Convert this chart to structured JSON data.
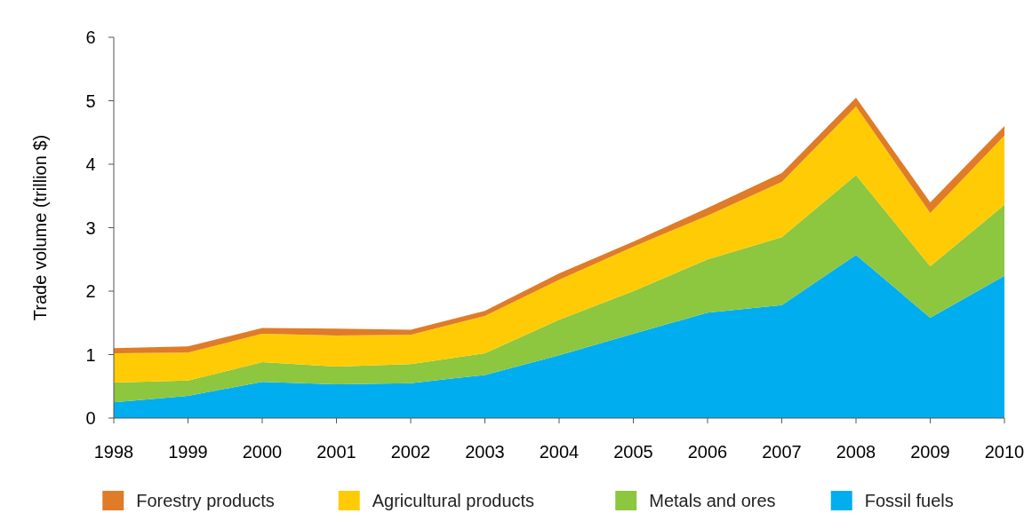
{
  "chart_data": {
    "type": "area",
    "ylabel": "Trade volume (trillion $)",
    "stacked": true,
    "x": [
      1998,
      1999,
      2000,
      2001,
      2002,
      2003,
      2004,
      2005,
      2006,
      2007,
      2008,
      2009,
      2010
    ],
    "xlim": [
      1998,
      2010
    ],
    "xticks": [
      1998,
      1999,
      2000,
      2001,
      2002,
      2003,
      2004,
      2005,
      2006,
      2007,
      2008,
      2009,
      2010
    ],
    "ylim": [
      0,
      6
    ],
    "yticks": [
      0,
      1,
      2,
      3,
      4,
      5,
      6
    ],
    "grid": false,
    "legend": "bottom",
    "series": [
      {
        "name": "Fossil fuels",
        "color": "#00adef",
        "values": [
          0.25,
          0.35,
          0.57,
          0.53,
          0.55,
          0.68,
          0.99,
          1.33,
          1.66,
          1.78,
          2.57,
          1.58,
          2.24
        ]
      },
      {
        "name": "Metals and ores",
        "color": "#8dc63f",
        "values": [
          0.31,
          0.24,
          0.31,
          0.28,
          0.3,
          0.34,
          0.56,
          0.67,
          0.84,
          1.07,
          1.26,
          0.81,
          1.12
        ]
      },
      {
        "name": "Agricultural products",
        "color": "#ffcb05",
        "values": [
          0.46,
          0.44,
          0.45,
          0.49,
          0.46,
          0.59,
          0.63,
          0.7,
          0.69,
          0.87,
          1.08,
          0.84,
          1.09
        ]
      },
      {
        "name": "Forestry products",
        "color": "#e07b28",
        "values": [
          0.08,
          0.1,
          0.09,
          0.11,
          0.08,
          0.08,
          0.1,
          0.08,
          0.12,
          0.14,
          0.14,
          0.17,
          0.15
        ]
      }
    ]
  }
}
